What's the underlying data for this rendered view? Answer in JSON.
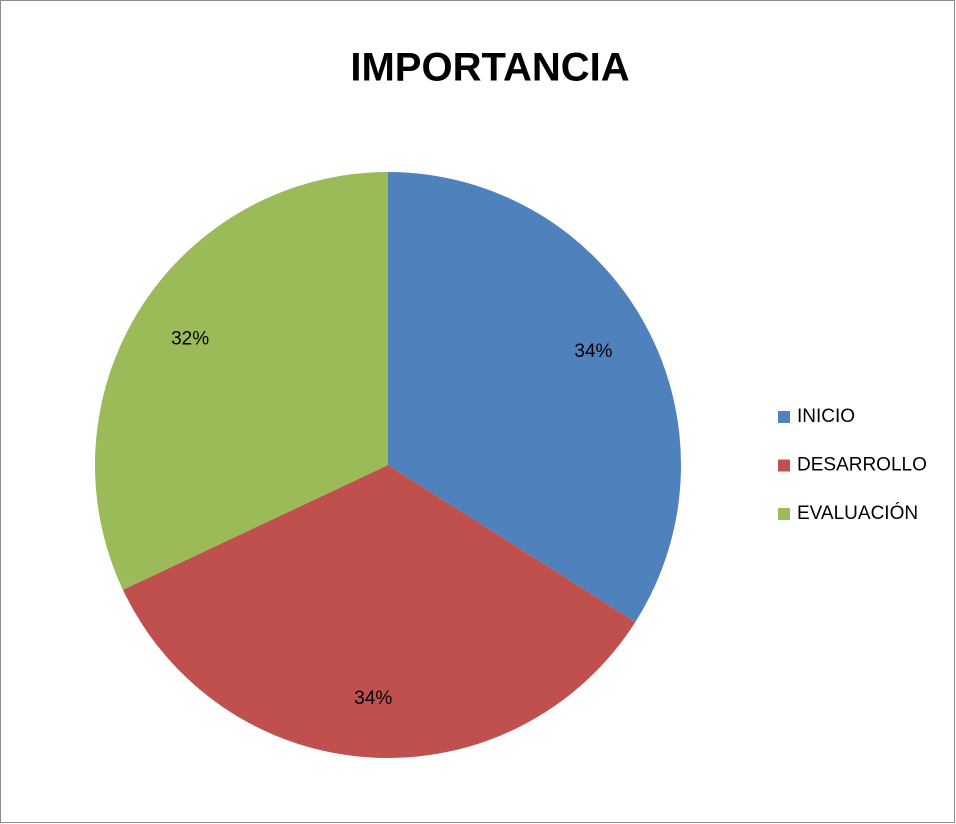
{
  "chart_data": {
    "type": "pie",
    "title": "IMPORTANCIA",
    "categories": [
      "INICIO",
      "DESARROLLO",
      "EVALUACIÓN"
    ],
    "values": [
      34,
      34,
      32
    ],
    "value_labels": [
      "34%",
      "34%",
      "32%"
    ],
    "colors": [
      "#4f81bd",
      "#c0504d",
      "#9bbb59"
    ],
    "legend": "right"
  }
}
